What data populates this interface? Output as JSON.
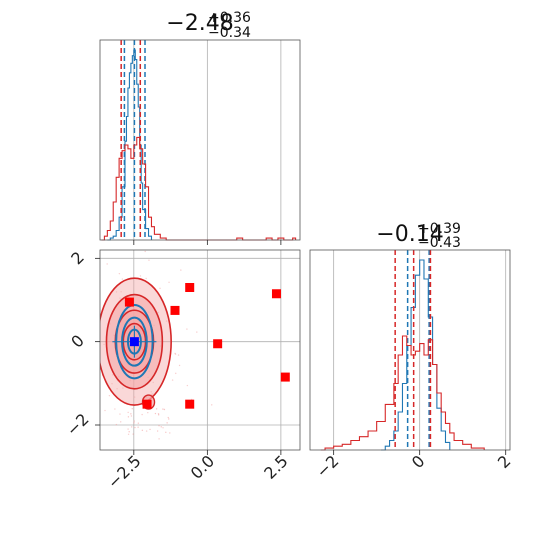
{
  "chart_data": [
    {
      "type": "histogram",
      "panel": "x1-marginal",
      "title_main": "−2.48",
      "title_sup": "+0.36",
      "title_sub": "−0.34",
      "xlim": [
        -3.65,
        3.15
      ],
      "grid_x": [
        -2.5,
        0.0,
        2.5
      ],
      "series": [
        {
          "name": "",
          "color": "#1f77b4",
          "bins": [
            [
              -3.4,
              0.0
            ],
            [
              -3.3,
              0.01
            ],
            [
              -3.2,
              0.02
            ],
            [
              -3.1,
              0.05
            ],
            [
              -3.0,
              0.12
            ],
            [
              -2.9,
              0.28
            ],
            [
              -2.8,
              0.52
            ],
            [
              -2.75,
              0.65
            ],
            [
              -2.7,
              0.8
            ],
            [
              -2.65,
              0.88
            ],
            [
              -2.6,
              0.93
            ],
            [
              -2.55,
              0.97
            ],
            [
              -2.5,
              1.0
            ],
            [
              -2.45,
              0.95
            ],
            [
              -2.4,
              0.82
            ],
            [
              -2.35,
              0.7
            ],
            [
              -2.3,
              0.5
            ],
            [
              -2.25,
              0.3
            ],
            [
              -2.2,
              0.16
            ],
            [
              -2.1,
              0.06
            ],
            [
              -2.0,
              0.02
            ],
            [
              -1.9,
              0.0
            ]
          ],
          "vlines": [
            -2.82,
            -2.48,
            -2.12
          ]
        },
        {
          "name": "",
          "color": "#d62728",
          "bins": [
            [
              -3.6,
              0.0
            ],
            [
              -3.5,
              0.02
            ],
            [
              -3.4,
              0.05
            ],
            [
              -3.3,
              0.1
            ],
            [
              -3.2,
              0.2
            ],
            [
              -3.1,
              0.33
            ],
            [
              -3.0,
              0.43
            ],
            [
              -2.9,
              0.47
            ],
            [
              -2.8,
              0.5
            ],
            [
              -2.7,
              0.48
            ],
            [
              -2.6,
              0.43
            ],
            [
              -2.5,
              0.5
            ],
            [
              -2.4,
              0.54
            ],
            [
              -2.3,
              0.48
            ],
            [
              -2.2,
              0.4
            ],
            [
              -2.1,
              0.28
            ],
            [
              -2.0,
              0.12
            ],
            [
              -1.9,
              0.07
            ],
            [
              -1.8,
              0.03
            ],
            [
              -1.6,
              0.01
            ],
            [
              -1.4,
              0.0
            ],
            [
              1.0,
              0.01
            ],
            [
              1.2,
              0.0
            ],
            [
              2.0,
              0.01
            ],
            [
              2.2,
              0.0
            ],
            [
              2.4,
              0.01
            ],
            [
              2.6,
              0.0
            ],
            [
              2.9,
              0.01
            ],
            [
              3.0,
              0.0
            ]
          ],
          "vlines": [
            -2.93,
            -2.28
          ]
        }
      ]
    },
    {
      "type": "scatter",
      "panel": "joint",
      "xlim": [
        -3.65,
        3.15
      ],
      "ylim": [
        -2.6,
        2.2
      ],
      "xticks": [
        -2.5,
        0.0,
        2.5
      ],
      "xtick_labels": [
        "−2.5",
        "0.0",
        "2.5"
      ],
      "yticks": [
        2,
        0,
        -2
      ],
      "ytick_labels": [
        "2",
        "0",
        "−2"
      ],
      "grid_x": [
        -2.5,
        0.0,
        2.5
      ],
      "grid_y": [
        -2,
        0,
        2
      ],
      "points_red": [
        [
          -2.65,
          0.95
        ],
        [
          -0.6,
          1.3
        ],
        [
          -1.1,
          0.75
        ],
        [
          2.35,
          1.15
        ],
        [
          0.35,
          -0.05
        ],
        [
          2.65,
          -0.85
        ],
        [
          -2.05,
          -1.5
        ],
        [
          -0.6,
          -1.5
        ]
      ],
      "point_blue": [
        -2.48,
        0.0
      ],
      "contours_red": [
        [
          1.25,
          1.05
        ],
        [
          0.95,
          0.78
        ],
        [
          0.65,
          0.52
        ],
        [
          0.38,
          0.3
        ]
      ],
      "contours_blue": [
        [
          0.62,
          0.55
        ],
        [
          0.42,
          0.36
        ],
        [
          0.22,
          0.18
        ]
      ],
      "colors": {
        "red": "#d62728",
        "blue": "#1f77b4",
        "fill": "#f4a6a6",
        "point": "#0000ff",
        "marker": "#ff0000"
      }
    },
    {
      "type": "histogram",
      "panel": "x2-marginal",
      "title_main": "−0.14",
      "title_sup": "+0.39",
      "title_sub": "−0.43",
      "xlim": [
        -2.55,
        2.1
      ],
      "xticks": [
        -2,
        0,
        2
      ],
      "xtick_labels": [
        "−2",
        "0",
        "2"
      ],
      "grid_x": [
        -2,
        0,
        2
      ],
      "series": [
        {
          "name": "",
          "color": "#1f77b4",
          "bins": [
            [
              -0.9,
              0.0
            ],
            [
              -0.8,
              0.02
            ],
            [
              -0.7,
              0.05
            ],
            [
              -0.6,
              0.1
            ],
            [
              -0.5,
              0.2
            ],
            [
              -0.4,
              0.35
            ],
            [
              -0.3,
              0.55
            ],
            [
              -0.2,
              0.75
            ],
            [
              -0.1,
              0.92
            ],
            [
              0.0,
              1.0
            ],
            [
              0.1,
              0.9
            ],
            [
              0.2,
              0.7
            ],
            [
              0.3,
              0.45
            ],
            [
              0.4,
              0.22
            ],
            [
              0.5,
              0.1
            ],
            [
              0.6,
              0.04
            ],
            [
              0.7,
              0.0
            ]
          ],
          "vlines": [
            -0.28,
            0.22
          ]
        },
        {
          "name": "",
          "color": "#d62728",
          "bins": [
            [
              -2.3,
              0.0
            ],
            [
              -2.2,
              0.01
            ],
            [
              -2.0,
              0.02
            ],
            [
              -1.8,
              0.03
            ],
            [
              -1.6,
              0.05
            ],
            [
              -1.4,
              0.07
            ],
            [
              -1.2,
              0.1
            ],
            [
              -1.0,
              0.15
            ],
            [
              -0.8,
              0.24
            ],
            [
              -0.6,
              0.35
            ],
            [
              -0.5,
              0.5
            ],
            [
              -0.4,
              0.6
            ],
            [
              -0.3,
              0.55
            ],
            [
              -0.2,
              0.5
            ],
            [
              -0.1,
              0.52
            ],
            [
              0.0,
              0.56
            ],
            [
              0.1,
              0.5
            ],
            [
              0.2,
              0.58
            ],
            [
              0.3,
              0.45
            ],
            [
              0.4,
              0.3
            ],
            [
              0.5,
              0.2
            ],
            [
              0.6,
              0.14
            ],
            [
              0.7,
              0.09
            ],
            [
              0.8,
              0.05
            ],
            [
              1.0,
              0.03
            ],
            [
              1.2,
              0.01
            ],
            [
              1.5,
              0.0
            ]
          ],
          "vlines": [
            -0.57,
            -0.14,
            0.25
          ]
        }
      ]
    }
  ]
}
